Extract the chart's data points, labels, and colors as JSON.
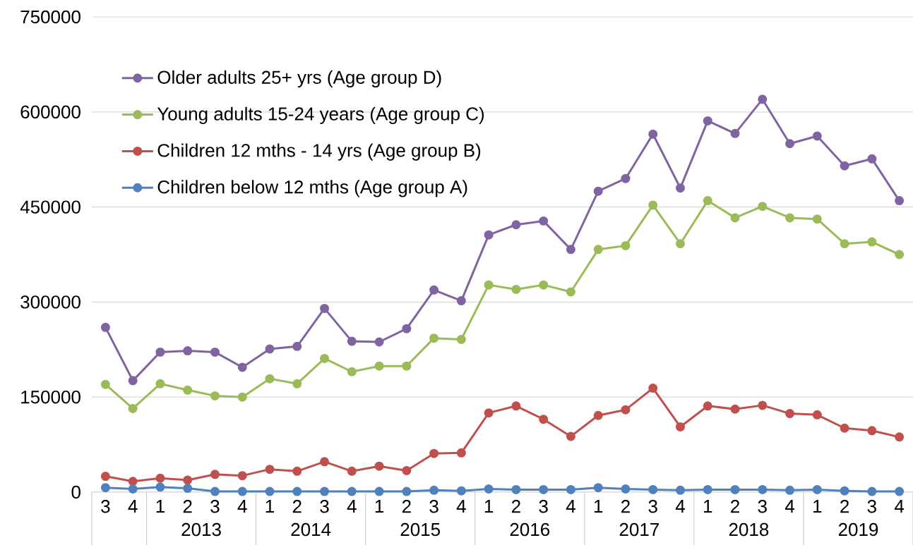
{
  "chart_data": {
    "type": "line",
    "categories": [
      "3",
      "4",
      "1",
      "2",
      "3",
      "4",
      "1",
      "2",
      "3",
      "4",
      "1",
      "2",
      "3",
      "4",
      "1",
      "2",
      "3",
      "4",
      "1",
      "2",
      "3",
      "4",
      "1",
      "2",
      "3",
      "4",
      "1",
      "2",
      "3",
      "4"
    ],
    "annotations": [
      "2013",
      "2014",
      "2015",
      "2016",
      "2017",
      "2018",
      "2019"
    ],
    "series": [
      {
        "name": "Older adults 25+ yrs (Age group D)",
        "color": "#8064a2",
        "values": [
          260000,
          176000,
          221000,
          223000,
          221000,
          197000,
          226000,
          230000,
          290000,
          238000,
          237000,
          258000,
          319000,
          302000,
          406000,
          422000,
          428000,
          383000,
          475000,
          495000,
          565000,
          480000,
          586000,
          566000,
          620000,
          550000,
          562000,
          515000,
          526000,
          460000
        ]
      },
      {
        "name": "Young adults 15-24 years (Age group C)",
        "color": "#9bbb59",
        "values": [
          170000,
          132000,
          171000,
          161000,
          152000,
          150000,
          179000,
          171000,
          211000,
          190000,
          199000,
          199000,
          243000,
          241000,
          327000,
          320000,
          327000,
          316000,
          383000,
          389000,
          453000,
          392000,
          460000,
          433000,
          451000,
          433000,
          431000,
          392000,
          395000,
          375000
        ]
      },
      {
        "name": "Children 12 mths - 14 yrs (Age group B)",
        "color": "#c0504d",
        "values": [
          25000,
          17000,
          22000,
          19000,
          28000,
          26000,
          36000,
          33000,
          48000,
          33000,
          41000,
          34000,
          61000,
          62000,
          125000,
          136000,
          115000,
          88000,
          121000,
          130000,
          164000,
          103000,
          136000,
          131000,
          137000,
          124000,
          122000,
          101000,
          97000,
          87000
        ]
      },
      {
        "name": "Children below 12 mths (Age group A)",
        "color": "#4f81bd",
        "values": [
          7000,
          5000,
          8000,
          6000,
          1000,
          1000,
          1000,
          1000,
          1000,
          1000,
          1000,
          1000,
          3000,
          2000,
          5000,
          4000,
          4000,
          4000,
          7000,
          5000,
          4000,
          3000,
          4000,
          4000,
          4000,
          3000,
          4000,
          2000,
          1000,
          1000
        ]
      }
    ],
    "ylim": [
      0,
      750000
    ],
    "yticks": [
      0,
      150000,
      300000,
      450000,
      600000,
      750000
    ],
    "grid": "y",
    "legend": "top left",
    "marker": "circle",
    "line_style": "solid"
  }
}
